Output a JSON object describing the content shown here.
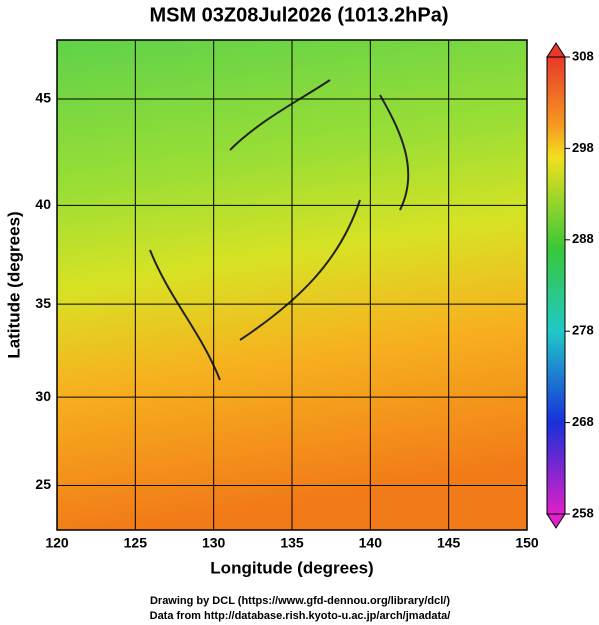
{
  "chart_data": {
    "type": "map",
    "title": "MSM 03Z08Jul2026 (1013.2hPa)",
    "xlabel": "Longitude (degrees)",
    "ylabel": "Latitude  (degrees)",
    "xlim": [
      120,
      150
    ],
    "xticks": [
      120,
      125,
      130,
      135,
      140,
      145,
      150
    ],
    "ylim": [
      22.4,
      47.6
    ],
    "yticks": [
      25,
      30,
      35,
      40,
      45
    ],
    "colorbar": {
      "lim": [
        258,
        308
      ],
      "ticks": [
        258,
        268,
        278,
        288,
        298,
        308
      ]
    },
    "credits": [
      "Drawing by DCL (https://www.gfd-dennou.org/library/dcl/)",
      "Data from http://database.rish.kyoto-u.ac.jp/arch/jmadata/"
    ]
  }
}
